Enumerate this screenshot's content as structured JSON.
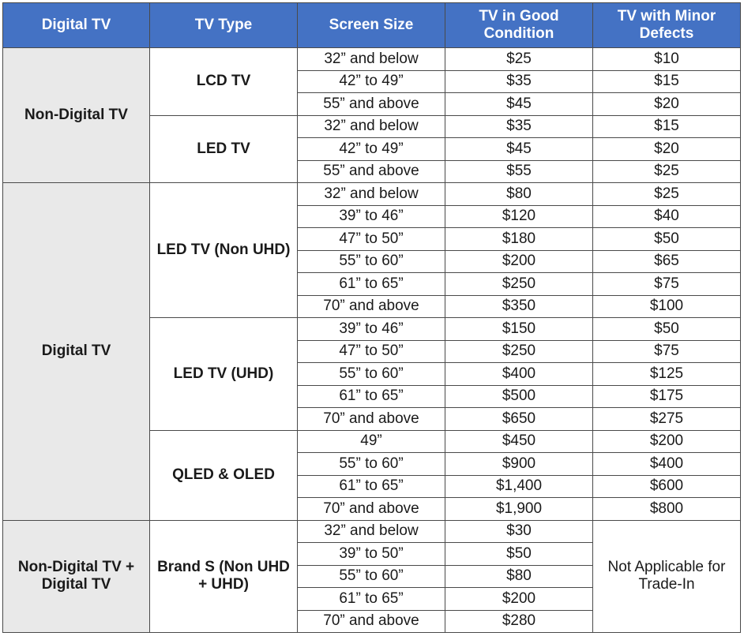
{
  "headers": [
    "Digital TV",
    "TV Type",
    "Screen Size",
    "TV in Good Condition",
    "TV with Minor Defects"
  ],
  "categories": [
    {
      "name": "Non-Digital TV",
      "types": [
        {
          "name": "LCD TV",
          "rows": [
            [
              "32” and below",
              "$25",
              "$10"
            ],
            [
              "42” to 49”",
              "$35",
              "$15"
            ],
            [
              "55” and above",
              "$45",
              "$20"
            ]
          ]
        },
        {
          "name": "LED TV",
          "rows": [
            [
              "32” and below",
              "$35",
              "$15"
            ],
            [
              "42” to 49”",
              "$45",
              "$20"
            ],
            [
              "55” and above",
              "$55",
              "$25"
            ]
          ]
        }
      ]
    },
    {
      "name": "Digital TV",
      "types": [
        {
          "name": "LED TV (Non UHD)",
          "rows": [
            [
              "32” and below",
              "$80",
              "$25"
            ],
            [
              "39” to 46”",
              "$120",
              "$40"
            ],
            [
              "47” to 50”",
              "$180",
              "$50"
            ],
            [
              "55” to 60”",
              "$200",
              "$65"
            ],
            [
              "61” to 65”",
              "$250",
              "$75"
            ],
            [
              "70” and above",
              "$350",
              "$100"
            ]
          ]
        },
        {
          "name": "LED TV (UHD)",
          "rows": [
            [
              "39” to 46”",
              "$150",
              "$50"
            ],
            [
              "47” to 50”",
              "$250",
              "$75"
            ],
            [
              "55” to 60”",
              "$400",
              "$125"
            ],
            [
              "61” to 65”",
              "$500",
              "$175"
            ],
            [
              "70” and above",
              "$650",
              "$275"
            ]
          ]
        },
        {
          "name": "QLED & OLED",
          "rows": [
            [
              "49”",
              "$450",
              "$200"
            ],
            [
              "55” to 60”",
              "$900",
              "$400"
            ],
            [
              "61” to 65”",
              "$1,400",
              "$600"
            ],
            [
              "70” and above",
              "$1,900",
              "$800"
            ]
          ]
        }
      ]
    },
    {
      "name": "Non-Digital TV + Digital TV",
      "types": [
        {
          "name": "Brand S (Non UHD + UHD)",
          "merged_defect": "Not Applicable for Trade-In",
          "rows": [
            [
              "32” and below",
              "$30"
            ],
            [
              "39” to 50”",
              "$50"
            ],
            [
              "55” to 60”",
              "$80"
            ],
            [
              "61” to 65”",
              "$200"
            ],
            [
              "70” and above",
              "$280"
            ]
          ]
        }
      ]
    }
  ]
}
